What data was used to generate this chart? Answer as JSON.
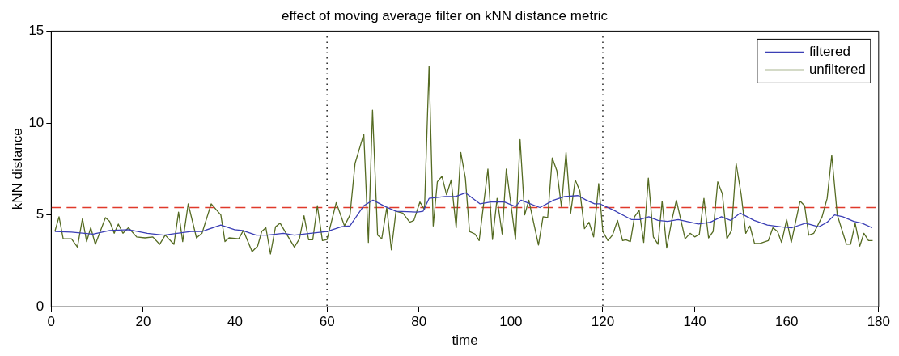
{
  "chart_data": {
    "type": "line",
    "title": "effect of moving average filter on kNN distance metric",
    "xlabel": "time",
    "ylabel": "kNN distance",
    "xlim": [
      0,
      180
    ],
    "xticks": [
      0,
      20,
      40,
      60,
      80,
      100,
      120,
      140,
      160,
      180
    ],
    "ylim": [
      0,
      15
    ],
    "yticks": [
      0,
      5,
      10,
      15
    ],
    "grid": false,
    "legend": "top right",
    "line_style": "solid",
    "marker": "none",
    "series": [
      {
        "name": "filtered",
        "color": "#3b3fb5",
        "x": [
          0.8,
          4.4,
          9.1,
          12.7,
          16.8,
          20.9,
          24.5,
          27.4,
          30.4,
          32.8,
          36.9,
          39.9,
          41.6,
          44.6,
          47,
          50.5,
          52.9,
          56.4,
          60,
          63.2,
          65,
          68,
          70,
          72.7,
          75,
          79.7,
          80.9,
          82.2,
          85.7,
          88,
          90.1,
          93.3,
          95.6,
          98.6,
          101,
          102.2,
          106.3,
          109.3,
          111.7,
          114.6,
          116.4,
          118.2,
          119.4,
          122.4,
          126.2,
          128,
          130,
          132,
          134.1,
          136.4,
          140.8,
          143.4,
          145.8,
          147.8,
          149.9,
          152.9,
          155.8,
          158.8,
          161.1,
          164.1,
          167,
          168.8,
          170.4,
          172.2,
          174.6,
          176.4,
          178.6
        ],
        "values": [
          4.1,
          4.06,
          3.95,
          4.15,
          4.2,
          4.0,
          3.9,
          4.0,
          4.1,
          4.1,
          4.45,
          4.2,
          4.15,
          3.9,
          3.9,
          4.0,
          3.9,
          4.0,
          4.1,
          4.36,
          4.4,
          5.5,
          5.8,
          5.45,
          5.2,
          5.15,
          5.2,
          5.9,
          6.0,
          6.0,
          6.2,
          5.6,
          5.7,
          5.7,
          5.45,
          5.8,
          5.4,
          5.8,
          6.0,
          6.05,
          5.8,
          5.6,
          5.6,
          5.25,
          4.75,
          4.75,
          4.9,
          4.7,
          4.65,
          4.75,
          4.5,
          4.6,
          4.9,
          4.7,
          5.1,
          4.7,
          4.45,
          4.35,
          4.3,
          4.55,
          4.35,
          4.6,
          5.0,
          4.9,
          4.65,
          4.55,
          4.3
        ]
      },
      {
        "name": "unfiltered",
        "color": "#556b22",
        "x": [
          0.8,
          1.7,
          2.6,
          4.4,
          5.7,
          6.8,
          7.7,
          8.6,
          9.6,
          11.8,
          12.7,
          13.7,
          14.6,
          15.6,
          16.8,
          18.6,
          20.4,
          22.1,
          23.6,
          24.8,
          26.7,
          27.7,
          28.6,
          29.8,
          31.6,
          32.8,
          34.8,
          36.9,
          37.8,
          38.7,
          40.8,
          41.8,
          43.7,
          44.9,
          45.8,
          46.7,
          47.7,
          48.8,
          49.8,
          51.1,
          52.9,
          54,
          55,
          56,
          56.9,
          57.9,
          59,
          60,
          62,
          63.8,
          65,
          66.1,
          68,
          69,
          69.9,
          71,
          71.9,
          73,
          74,
          75,
          76.5,
          78,
          78.9,
          80.2,
          81.2,
          82.2,
          83.1,
          84,
          85,
          86,
          87,
          88.1,
          89.1,
          90.1,
          91,
          92.2,
          93.1,
          95,
          96,
          97,
          98.1,
          99,
          101,
          102,
          103,
          103.9,
          106,
          107,
          108,
          109,
          110,
          111,
          112,
          113,
          114,
          115,
          116,
          117,
          118,
          119.1,
          120,
          121.1,
          122.1,
          123.2,
          124.3,
          125,
          126,
          126.9,
          127.9,
          128.9,
          129.9,
          131,
          132,
          132.9,
          133.9,
          135,
          136,
          137.9,
          139,
          140,
          141,
          142,
          143,
          144,
          145,
          146,
          147,
          148,
          149,
          150.1,
          151.1,
          152,
          153,
          154.2,
          156,
          157,
          158,
          158.9,
          160,
          161,
          162.9,
          163.9,
          164.8,
          165.9,
          167.7,
          168.8,
          169.8,
          171,
          173,
          173.9,
          174.9,
          175.9,
          176.8,
          177.8,
          178.7
        ],
        "values": [
          4.1,
          4.9,
          3.7,
          3.7,
          3.25,
          4.8,
          3.55,
          4.3,
          3.4,
          4.85,
          4.65,
          4.0,
          4.5,
          4.0,
          4.3,
          3.8,
          3.75,
          3.8,
          3.4,
          3.9,
          3.4,
          5.15,
          3.55,
          5.6,
          3.75,
          4.0,
          5.6,
          5.0,
          3.55,
          3.75,
          3.7,
          4.15,
          3.0,
          3.3,
          4.1,
          4.3,
          2.87,
          4.35,
          4.55,
          4.0,
          3.25,
          3.7,
          4.95,
          3.65,
          3.65,
          5.5,
          3.6,
          3.66,
          5.67,
          4.4,
          5.0,
          7.8,
          9.4,
          3.5,
          10.7,
          3.9,
          3.7,
          5.4,
          3.1,
          5.2,
          5.1,
          4.6,
          4.7,
          5.7,
          5.3,
          13.1,
          4.4,
          6.8,
          7.1,
          6.1,
          6.9,
          4.3,
          8.4,
          7.0,
          4.1,
          3.96,
          3.6,
          7.5,
          3.66,
          5.9,
          3.96,
          7.5,
          3.66,
          9.1,
          5.0,
          5.8,
          3.36,
          4.9,
          4.85,
          8.1,
          7.4,
          5.45,
          8.4,
          5.1,
          6.9,
          6.3,
          4.25,
          4.6,
          3.8,
          6.7,
          4.1,
          3.6,
          3.9,
          4.7,
          3.6,
          3.65,
          3.55,
          4.9,
          5.25,
          3.5,
          7.0,
          3.8,
          3.4,
          5.75,
          3.2,
          4.7,
          5.8,
          3.7,
          4.0,
          3.8,
          3.95,
          5.9,
          3.75,
          4.1,
          6.8,
          6.15,
          3.7,
          4.15,
          7.8,
          6.1,
          4.0,
          4.4,
          3.45,
          3.45,
          3.6,
          4.3,
          4.1,
          3.5,
          4.75,
          3.5,
          5.75,
          5.5,
          3.9,
          4.0,
          4.9,
          5.9,
          8.25,
          5.0,
          3.4,
          3.4,
          4.55,
          3.3,
          4.0,
          3.6,
          3.6
        ]
      }
    ],
    "ref_lines": [
      {
        "axis": "y",
        "value": 5.4,
        "color": "#e0392b",
        "line_style": "dashed"
      },
      {
        "axis": "x",
        "value": 60,
        "color": "#000000",
        "line_style": "dotted"
      },
      {
        "axis": "x",
        "value": 120,
        "color": "#000000",
        "line_style": "dotted"
      }
    ]
  }
}
